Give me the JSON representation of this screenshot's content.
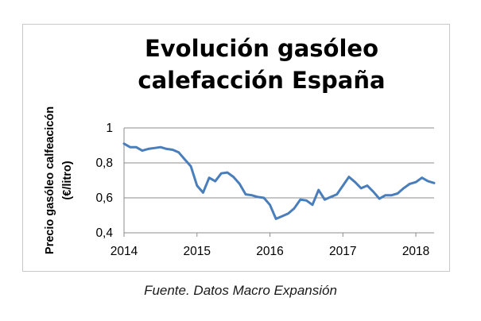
{
  "chart_data": {
    "type": "line",
    "title_lines": [
      "Evolución gasóleo",
      "calefacción España"
    ],
    "xlabel": "",
    "ylabel_lines": [
      "Precio gasóleo calfeacicón",
      "(€/litro)"
    ],
    "ylim": [
      0.4,
      1
    ],
    "yticks": [
      0.4,
      0.6,
      0.8,
      1
    ],
    "ytick_labels": [
      "0,4",
      "0,6",
      "0,8",
      "1"
    ],
    "xlim": [
      2014,
      2018.25
    ],
    "xticks": [
      2014,
      2015,
      2016,
      2017,
      2018
    ],
    "xtick_labels": [
      "2014",
      "2015",
      "2016",
      "2017",
      "2018"
    ],
    "grid": true,
    "line_color": "#4a7ebb",
    "series": [
      {
        "x": [
          2014.0,
          2014.083,
          2014.167,
          2014.25,
          2014.333,
          2014.417,
          2014.5,
          2014.583,
          2014.667,
          2014.75,
          2014.833,
          2014.917,
          2015.0,
          2015.083,
          2015.167,
          2015.25,
          2015.333,
          2015.417,
          2015.5,
          2015.583,
          2015.667,
          2015.75,
          2015.833,
          2015.917,
          2016.0,
          2016.083,
          2016.167,
          2016.25,
          2016.333,
          2016.417,
          2016.5,
          2016.583,
          2016.667,
          2016.75,
          2016.833,
          2016.917,
          2017.0,
          2017.083,
          2017.167,
          2017.25,
          2017.333,
          2017.417,
          2017.5,
          2017.583,
          2017.667,
          2017.75,
          2017.833,
          2017.917,
          2018.0,
          2018.083,
          2018.167,
          2018.25
        ],
        "y": [
          0.91,
          0.89,
          0.89,
          0.87,
          0.88,
          0.885,
          0.89,
          0.88,
          0.875,
          0.86,
          0.82,
          0.78,
          0.67,
          0.63,
          0.715,
          0.695,
          0.74,
          0.745,
          0.72,
          0.68,
          0.62,
          0.615,
          0.605,
          0.6,
          0.56,
          0.48,
          0.495,
          0.51,
          0.54,
          0.59,
          0.585,
          0.56,
          0.645,
          0.59,
          0.605,
          0.62,
          0.67,
          0.72,
          0.69,
          0.655,
          0.67,
          0.635,
          0.595,
          0.615,
          0.615,
          0.625,
          0.655,
          0.68,
          0.69,
          0.715,
          0.695,
          0.685
        ]
      }
    ]
  },
  "source_note": "Fuente. Datos Macro Expansión"
}
